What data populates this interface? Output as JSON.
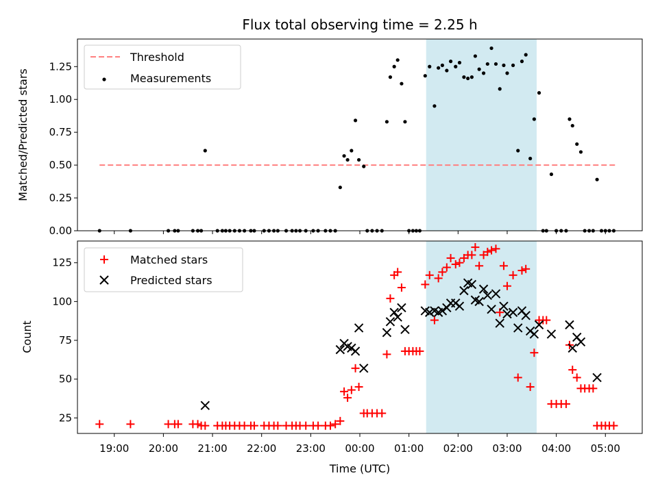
{
  "chart_data": [
    {
      "type": "scatter",
      "title": "Flux total observing time = 2.25 h",
      "xlabel": "",
      "ylabel": "Matched/Predicted stars",
      "xlim": [
        18.25,
        5.75
      ],
      "ylim": [
        0,
        1.46
      ],
      "yticks": [
        0,
        0.25,
        0.5,
        0.75,
        1.0,
        1.25
      ],
      "ytick_labels": [
        "0.00",
        "0.25",
        "0.50",
        "0.75",
        "1.00",
        "1.25"
      ],
      "shaded_region": [
        1.35,
        3.6
      ],
      "shade_color": "#add8e6",
      "legend": [
        {
          "label": "Threshold",
          "kind": "dashed-line",
          "color": "#ff7f7f"
        },
        {
          "label": "Measurements",
          "kind": "dot",
          "color": "#000000"
        }
      ],
      "threshold": {
        "name": "Threshold",
        "x": [
          18.7,
          5.2
        ],
        "y": 0.5,
        "color": "#ff7f7f"
      },
      "series": [
        {
          "name": "Measurements",
          "marker": "dot",
          "color": "#000000",
          "points": [
            [
              18.7,
              0
            ],
            [
              19.33,
              0
            ],
            [
              20.1,
              0
            ],
            [
              20.23,
              0
            ],
            [
              20.3,
              0
            ],
            [
              20.6,
              0
            ],
            [
              20.7,
              0
            ],
            [
              20.77,
              0
            ],
            [
              20.85,
              0.61
            ],
            [
              21.1,
              0
            ],
            [
              21.2,
              0
            ],
            [
              21.27,
              0
            ],
            [
              21.35,
              0
            ],
            [
              21.45,
              0
            ],
            [
              21.55,
              0
            ],
            [
              21.65,
              0
            ],
            [
              21.78,
              0
            ],
            [
              21.85,
              0
            ],
            [
              22.05,
              0
            ],
            [
              22.15,
              0
            ],
            [
              22.25,
              0
            ],
            [
              22.33,
              0
            ],
            [
              22.5,
              0
            ],
            [
              22.62,
              0
            ],
            [
              22.7,
              0
            ],
            [
              22.78,
              0
            ],
            [
              22.9,
              0
            ],
            [
              23.05,
              0
            ],
            [
              23.15,
              0
            ],
            [
              23.3,
              0
            ],
            [
              23.4,
              0
            ],
            [
              23.5,
              0
            ],
            [
              23.6,
              0.33
            ],
            [
              23.68,
              0.57
            ],
            [
              23.75,
              0.54
            ],
            [
              23.83,
              0.61
            ],
            [
              23.91,
              0.84
            ],
            [
              23.98,
              0.54
            ],
            [
              24.08,
              0.49
            ],
            [
              24.15,
              0
            ],
            [
              24.25,
              0
            ],
            [
              24.35,
              0
            ],
            [
              24.45,
              0
            ],
            [
              24.55,
              0.83
            ],
            [
              24.62,
              1.17
            ],
            [
              24.7,
              1.25
            ],
            [
              24.77,
              1.3
            ],
            [
              24.85,
              1.12
            ],
            [
              24.92,
              0.83
            ],
            [
              25.0,
              0
            ],
            [
              25.08,
              0
            ],
            [
              25.15,
              0
            ],
            [
              25.22,
              0
            ],
            [
              25.33,
              1.18
            ],
            [
              25.42,
              1.25
            ],
            [
              25.52,
              0.95
            ],
            [
              25.6,
              1.24
            ],
            [
              25.68,
              1.26
            ],
            [
              25.77,
              1.22
            ],
            [
              25.85,
              1.29
            ],
            [
              25.95,
              1.25
            ],
            [
              26.03,
              1.28
            ],
            [
              26.12,
              1.17
            ],
            [
              26.2,
              1.16
            ],
            [
              26.28,
              1.17
            ],
            [
              26.35,
              1.33
            ],
            [
              26.43,
              1.23
            ],
            [
              26.52,
              1.2
            ],
            [
              26.6,
              1.27
            ],
            [
              26.68,
              1.39
            ],
            [
              26.77,
              1.27
            ],
            [
              26.85,
              1.08
            ],
            [
              26.93,
              1.26
            ],
            [
              27.0,
              1.2
            ],
            [
              27.12,
              1.26
            ],
            [
              27.22,
              0.61
            ],
            [
              27.3,
              1.29
            ],
            [
              27.38,
              1.34
            ],
            [
              27.47,
              0.55
            ],
            [
              27.55,
              0.85
            ],
            [
              27.65,
              1.05
            ],
            [
              27.73,
              0
            ],
            [
              27.8,
              0
            ],
            [
              27.9,
              0.43
            ],
            [
              28.0,
              0
            ],
            [
              28.1,
              0
            ],
            [
              28.2,
              0
            ],
            [
              28.27,
              0.85
            ],
            [
              28.33,
              0.8
            ],
            [
              28.42,
              0.66
            ],
            [
              28.5,
              0.6
            ],
            [
              28.58,
              0
            ],
            [
              28.67,
              0
            ],
            [
              28.75,
              0
            ],
            [
              28.83,
              0.39
            ],
            [
              28.92,
              0
            ],
            [
              29.0,
              0
            ],
            [
              29.08,
              0
            ],
            [
              29.17,
              0
            ]
          ]
        }
      ]
    },
    {
      "type": "scatter",
      "title": "",
      "xlabel": "Time (UTC)",
      "ylabel": "Count",
      "xlim": [
        18.25,
        5.75
      ],
      "ylim": [
        15,
        139
      ],
      "yticks": [
        25,
        50,
        75,
        100,
        125
      ],
      "ytick_labels": [
        "25",
        "50",
        "75",
        "100",
        "125"
      ],
      "xticks": [
        19,
        20,
        21,
        22,
        23,
        24,
        25,
        26,
        27,
        28,
        29
      ],
      "xtick_labels": [
        "19:00",
        "20:00",
        "21:00",
        "22:00",
        "23:00",
        "00:00",
        "01:00",
        "02:00",
        "03:00",
        "04:00",
        "05:00"
      ],
      "shaded_region": [
        1.35,
        3.6
      ],
      "shade_color": "#add8e6",
      "legend": [
        {
          "label": "Matched stars",
          "kind": "plus",
          "color": "#ff0000"
        },
        {
          "label": "Predicted stars",
          "kind": "cross",
          "color": "#000000"
        }
      ],
      "series": [
        {
          "name": "Matched stars",
          "marker": "plus",
          "color": "#ff0000",
          "points": [
            [
              18.7,
              21
            ],
            [
              19.33,
              21
            ],
            [
              20.1,
              21
            ],
            [
              20.23,
              21
            ],
            [
              20.3,
              21
            ],
            [
              20.6,
              21
            ],
            [
              20.7,
              21
            ],
            [
              20.77,
              20
            ],
            [
              20.85,
              20
            ],
            [
              21.1,
              20
            ],
            [
              21.2,
              20
            ],
            [
              21.27,
              20
            ],
            [
              21.35,
              20
            ],
            [
              21.45,
              20
            ],
            [
              21.55,
              20
            ],
            [
              21.65,
              20
            ],
            [
              21.78,
              20
            ],
            [
              21.85,
              20
            ],
            [
              22.05,
              20
            ],
            [
              22.15,
              20
            ],
            [
              22.25,
              20
            ],
            [
              22.33,
              20
            ],
            [
              22.5,
              20
            ],
            [
              22.62,
              20
            ],
            [
              22.7,
              20
            ],
            [
              22.78,
              20
            ],
            [
              22.9,
              20
            ],
            [
              23.05,
              20
            ],
            [
              23.15,
              20
            ],
            [
              23.3,
              20
            ],
            [
              23.4,
              20
            ],
            [
              23.5,
              21
            ],
            [
              23.6,
              23
            ],
            [
              23.68,
              42
            ],
            [
              23.75,
              38
            ],
            [
              23.83,
              43
            ],
            [
              23.91,
              57
            ],
            [
              23.98,
              45
            ],
            [
              24.08,
              28
            ],
            [
              24.15,
              28
            ],
            [
              24.25,
              28
            ],
            [
              24.35,
              28
            ],
            [
              24.45,
              28
            ],
            [
              24.55,
              66
            ],
            [
              24.62,
              102
            ],
            [
              24.7,
              117
            ],
            [
              24.77,
              119
            ],
            [
              24.85,
              109
            ],
            [
              24.92,
              68
            ],
            [
              25.0,
              68
            ],
            [
              25.08,
              68
            ],
            [
              25.15,
              68
            ],
            [
              25.22,
              68
            ],
            [
              25.33,
              111
            ],
            [
              25.42,
              117
            ],
            [
              25.52,
              88
            ],
            [
              25.6,
              115
            ],
            [
              25.68,
              119
            ],
            [
              25.77,
              122
            ],
            [
              25.85,
              128
            ],
            [
              25.95,
              124
            ],
            [
              26.03,
              125
            ],
            [
              26.12,
              128
            ],
            [
              26.2,
              130
            ],
            [
              26.28,
              130
            ],
            [
              26.35,
              135
            ],
            [
              26.43,
              123
            ],
            [
              26.52,
              130
            ],
            [
              26.6,
              132
            ],
            [
              26.68,
              133
            ],
            [
              26.77,
              134
            ],
            [
              26.85,
              93
            ],
            [
              26.93,
              123
            ],
            [
              27.0,
              110
            ],
            [
              27.12,
              117
            ],
            [
              27.22,
              51
            ],
            [
              27.3,
              120
            ],
            [
              27.38,
              121
            ],
            [
              27.47,
              45
            ],
            [
              27.55,
              67
            ],
            [
              27.65,
              88
            ],
            [
              27.73,
              88
            ],
            [
              27.8,
              88
            ],
            [
              27.9,
              34
            ],
            [
              28.0,
              34
            ],
            [
              28.1,
              34
            ],
            [
              28.2,
              34
            ],
            [
              28.27,
              72
            ],
            [
              28.33,
              56
            ],
            [
              28.42,
              51
            ],
            [
              28.5,
              44
            ],
            [
              28.58,
              44
            ],
            [
              28.67,
              44
            ],
            [
              28.75,
              44
            ],
            [
              28.83,
              20
            ],
            [
              28.92,
              20
            ],
            [
              29.0,
              20
            ],
            [
              29.08,
              20
            ],
            [
              29.17,
              20
            ]
          ]
        },
        {
          "name": "Predicted stars",
          "marker": "cross",
          "color": "#000000",
          "points": [
            [
              20.85,
              33
            ],
            [
              23.6,
              69
            ],
            [
              23.68,
              73
            ],
            [
              23.75,
              71
            ],
            [
              23.83,
              70
            ],
            [
              23.91,
              68
            ],
            [
              23.98,
              83
            ],
            [
              24.08,
              57
            ],
            [
              24.55,
              80
            ],
            [
              24.62,
              87
            ],
            [
              24.7,
              93
            ],
            [
              24.77,
              90
            ],
            [
              24.85,
              96
            ],
            [
              24.92,
              82
            ],
            [
              25.33,
              94
            ],
            [
              25.42,
              93
            ],
            [
              25.52,
              94
            ],
            [
              25.6,
              93
            ],
            [
              25.68,
              94
            ],
            [
              25.77,
              96
            ],
            [
              25.85,
              99
            ],
            [
              25.95,
              99
            ],
            [
              26.03,
              97
            ],
            [
              26.12,
              107
            ],
            [
              26.2,
              112
            ],
            [
              26.28,
              111
            ],
            [
              26.35,
              101
            ],
            [
              26.43,
              100
            ],
            [
              26.52,
              108
            ],
            [
              26.6,
              104
            ],
            [
              26.68,
              95
            ],
            [
              26.77,
              105
            ],
            [
              26.85,
              86
            ],
            [
              26.93,
              97
            ],
            [
              27.0,
              92
            ],
            [
              27.12,
              93
            ],
            [
              27.22,
              83
            ],
            [
              27.3,
              94
            ],
            [
              27.38,
              91
            ],
            [
              27.47,
              81
            ],
            [
              27.55,
              79
            ],
            [
              27.65,
              85
            ],
            [
              27.9,
              79
            ],
            [
              28.27,
              85
            ],
            [
              28.33,
              70
            ],
            [
              28.42,
              77
            ],
            [
              28.5,
              74
            ],
            [
              28.83,
              51
            ]
          ]
        }
      ]
    }
  ]
}
